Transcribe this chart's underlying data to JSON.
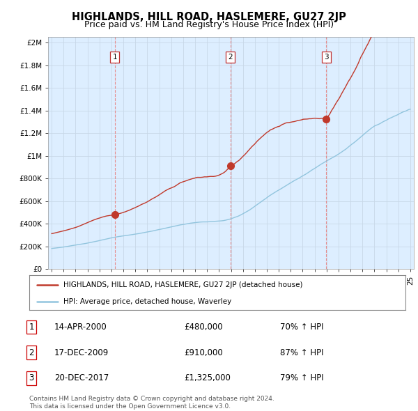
{
  "title": "HIGHLANDS, HILL ROAD, HASLEMERE, GU27 2JP",
  "subtitle": "Price paid vs. HM Land Registry's House Price Index (HPI)",
  "ytick_values": [
    0,
    200000,
    400000,
    600000,
    800000,
    1000000,
    1200000,
    1400000,
    1600000,
    1800000,
    2000000
  ],
  "ylim": [
    0,
    2050000
  ],
  "xlim_start": 1994.7,
  "xlim_end": 2025.3,
  "sale_dates": [
    2000.28,
    2009.96,
    2017.97
  ],
  "sale_prices": [
    480000,
    910000,
    1325000
  ],
  "sale_labels": [
    "1",
    "2",
    "3"
  ],
  "hpi_color": "#92c5de",
  "price_color": "#c0392b",
  "dashed_color": "#e8a0a0",
  "grid_color": "#c8d8e8",
  "chart_bg": "#ddeeff",
  "background_color": "#ffffff",
  "legend_label_price": "HIGHLANDS, HILL ROAD, HASLEMERE, GU27 2JP (detached house)",
  "legend_label_hpi": "HPI: Average price, detached house, Waverley",
  "table_rows": [
    [
      "1",
      "14-APR-2000",
      "£480,000",
      "70% ↑ HPI"
    ],
    [
      "2",
      "17-DEC-2009",
      "£910,000",
      "87% ↑ HPI"
    ],
    [
      "3",
      "20-DEC-2017",
      "£1,325,000",
      "79% ↑ HPI"
    ]
  ],
  "footer": "Contains HM Land Registry data © Crown copyright and database right 2024.\nThis data is licensed under the Open Government Licence v3.0.",
  "title_fontsize": 10.5,
  "subtitle_fontsize": 9,
  "tick_fontsize": 7.5,
  "legend_fontsize": 7.5,
  "table_fontsize": 8.5,
  "footer_fontsize": 6.5
}
